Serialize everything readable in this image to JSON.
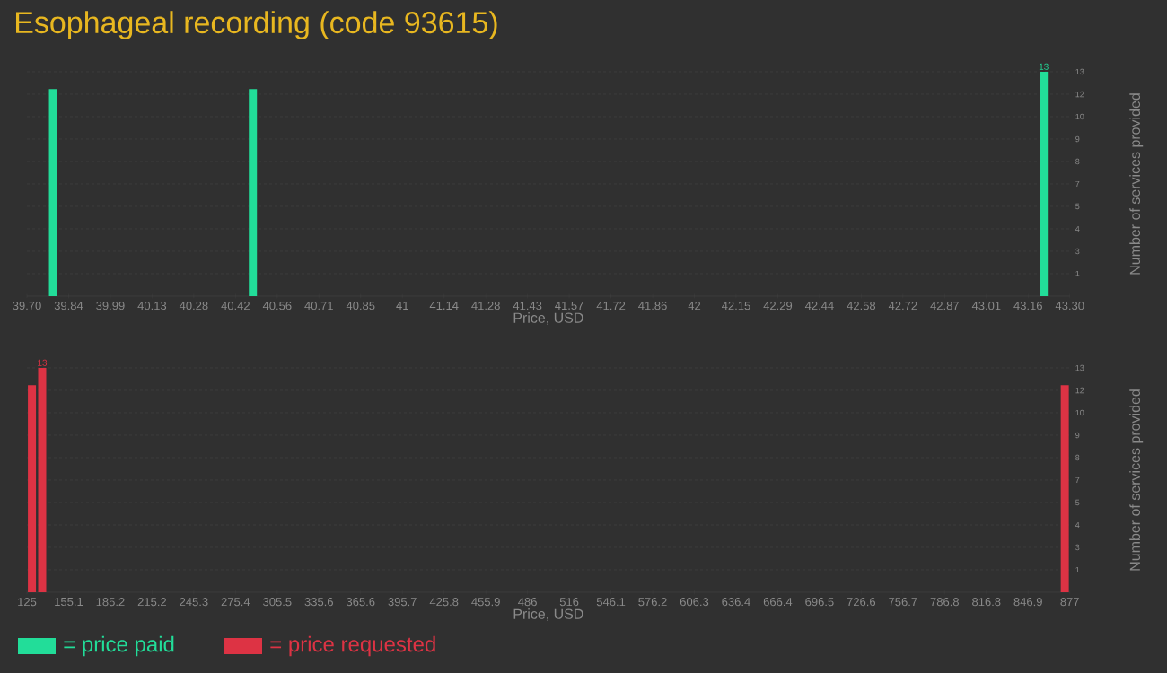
{
  "chart_data": [
    {
      "type": "bar",
      "title": "Esophageal recording (code 93615)",
      "xlabel": "Price, USD",
      "ylabel": "Number of services provided",
      "x": [
        39.79,
        40.48,
        43.21
      ],
      "series": [
        {
          "name": "= price paid",
          "color": "#22dd99",
          "values": [
            12,
            12,
            13
          ],
          "value_labels": [
            null,
            null,
            "13"
          ]
        }
      ],
      "xlim": [
        39.7,
        43.3
      ],
      "xticks": [
        {
          "value": 39.7,
          "label": "39.70"
        },
        {
          "value": 39.844,
          "label": "39.84"
        },
        {
          "value": 39.988,
          "label": "39.99"
        },
        {
          "value": 40.132,
          "label": "40.13"
        },
        {
          "value": 40.276,
          "label": "40.28"
        },
        {
          "value": 40.42,
          "label": "40.42"
        },
        {
          "value": 40.564,
          "label": "40.56"
        },
        {
          "value": 40.708,
          "label": "40.71"
        },
        {
          "value": 40.852,
          "label": "40.85"
        },
        {
          "value": 40.996,
          "label": "41"
        },
        {
          "value": 41.14,
          "label": "41.14"
        },
        {
          "value": 41.284,
          "label": "41.28"
        },
        {
          "value": 41.428,
          "label": "41.43"
        },
        {
          "value": 41.572,
          "label": "41.57"
        },
        {
          "value": 41.716,
          "label": "41.72"
        },
        {
          "value": 41.86,
          "label": "41.86"
        },
        {
          "value": 42.004,
          "label": "42"
        },
        {
          "value": 42.148,
          "label": "42.15"
        },
        {
          "value": 42.292,
          "label": "42.29"
        },
        {
          "value": 42.436,
          "label": "42.44"
        },
        {
          "value": 42.58,
          "label": "42.58"
        },
        {
          "value": 42.724,
          "label": "42.72"
        },
        {
          "value": 42.868,
          "label": "42.87"
        },
        {
          "value": 43.012,
          "label": "43.01"
        },
        {
          "value": 43.156,
          "label": "43.16"
        },
        {
          "value": 43.3,
          "label": "43.30"
        }
      ],
      "ylim": [
        0,
        13
      ],
      "yticks": [
        {
          "value": 1.3,
          "label": "1"
        },
        {
          "value": 2.6,
          "label": "3"
        },
        {
          "value": 3.9,
          "label": "4"
        },
        {
          "value": 5.2,
          "label": "5"
        },
        {
          "value": 6.5,
          "label": "7"
        },
        {
          "value": 7.8,
          "label": "8"
        },
        {
          "value": 9.1,
          "label": "9"
        },
        {
          "value": 10.4,
          "label": "10"
        },
        {
          "value": 11.7,
          "label": "12"
        },
        13
      ],
      "grid": "y",
      "legend": "bottom left"
    },
    {
      "type": "bar",
      "xlabel": "Price, USD",
      "ylabel": "Number of services provided",
      "x": [
        128.6,
        136.0,
        873.4
      ],
      "series": [
        {
          "name": "= price requested",
          "color": "#dd3344",
          "values": [
            12,
            13,
            12
          ],
          "value_labels": [
            null,
            "13",
            null
          ]
        }
      ],
      "xlim": [
        125,
        877
      ],
      "xticks": [
        125,
        {
          "value": 155.08,
          "label": "155.1"
        },
        {
          "value": 185.16,
          "label": "185.2"
        },
        {
          "value": 215.24,
          "label": "215.2"
        },
        {
          "value": 245.32,
          "label": "245.3"
        },
        {
          "value": 275.4,
          "label": "275.4"
        },
        {
          "value": 305.48,
          "label": "305.5"
        },
        {
          "value": 335.56,
          "label": "335.6"
        },
        {
          "value": 365.64,
          "label": "365.6"
        },
        {
          "value": 395.72,
          "label": "395.7"
        },
        {
          "value": 425.8,
          "label": "425.8"
        },
        {
          "value": 455.88,
          "label": "455.9"
        },
        {
          "value": 485.96,
          "label": "486"
        },
        {
          "value": 516.04,
          "label": "516"
        },
        {
          "value": 546.12,
          "label": "546.1"
        },
        {
          "value": 576.2,
          "label": "576.2"
        },
        {
          "value": 606.28,
          "label": "606.3"
        },
        {
          "value": 636.36,
          "label": "636.4"
        },
        {
          "value": 666.44,
          "label": "666.4"
        },
        {
          "value": 696.52,
          "label": "696.5"
        },
        {
          "value": 726.6,
          "label": "726.6"
        },
        {
          "value": 756.68,
          "label": "756.7"
        },
        {
          "value": 786.76,
          "label": "786.8"
        },
        {
          "value": 816.84,
          "label": "816.8"
        },
        {
          "value": 846.92,
          "label": "846.9"
        },
        877
      ],
      "ylim": [
        0,
        13
      ],
      "yticks": [
        {
          "value": 1.3,
          "label": "1"
        },
        {
          "value": 2.6,
          "label": "3"
        },
        {
          "value": 3.9,
          "label": "4"
        },
        {
          "value": 5.2,
          "label": "5"
        },
        {
          "value": 6.5,
          "label": "7"
        },
        {
          "value": 7.8,
          "label": "8"
        },
        {
          "value": 9.1,
          "label": "9"
        },
        {
          "value": 10.4,
          "label": "10"
        },
        {
          "value": 11.7,
          "label": "12"
        },
        13
      ],
      "grid": "y",
      "legend": "bottom left"
    }
  ]
}
